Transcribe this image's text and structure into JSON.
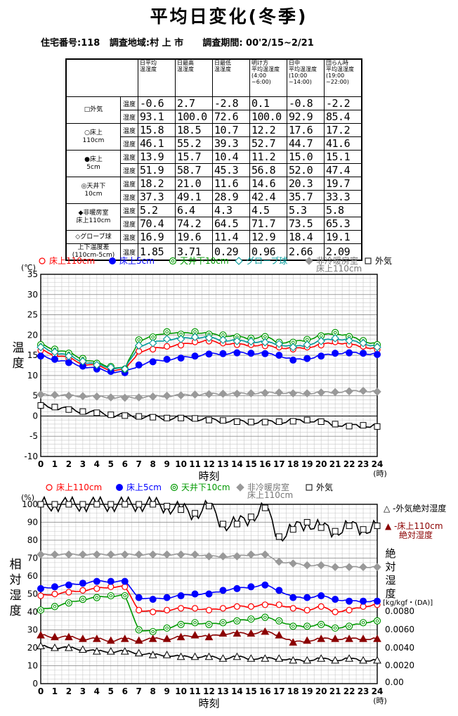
{
  "title": "平均日変化(冬季)",
  "subtitle": "住宅番号:118   調査地域:村 上 市      調査期間: 00'2/15~2/21",
  "table": {
    "headers": [
      "日平均\n温湿度",
      "日最高\n温湿度",
      "日最低\n温湿度",
      "明け方\n平均温湿度\n(4:00\n~6:00)",
      "日中\n平均温湿度\n(10:00\n~14:00)",
      "団らん時\n平均温湿度\n(19:00\n~22:00)"
    ],
    "rows": [
      {
        "label": "□外気",
        "temp": [
          "-0.6",
          "2.7",
          "-2.8",
          "0.1",
          "-0.8",
          "-2.2"
        ],
        "hum": [
          "93.1",
          "100.0",
          "72.6",
          "100.0",
          "92.9",
          "85.4"
        ]
      },
      {
        "label": "○床上\n110cm",
        "temp": [
          "15.8",
          "18.5",
          "10.7",
          "12.2",
          "17.6",
          "17.2"
        ],
        "hum": [
          "46.1",
          "55.2",
          "39.3",
          "52.7",
          "44.7",
          "41.6"
        ]
      },
      {
        "label": "●床上\n5cm",
        "temp": [
          "13.9",
          "15.7",
          "10.4",
          "11.2",
          "15.0",
          "15.1"
        ],
        "hum": [
          "51.9",
          "58.7",
          "45.3",
          "56.8",
          "52.0",
          "47.4"
        ]
      },
      {
        "label": "◎天井下\n10cm",
        "temp": [
          "18.2",
          "21.0",
          "11.6",
          "14.6",
          "20.3",
          "19.7"
        ],
        "hum": [
          "37.3",
          "49.1",
          "28.9",
          "42.4",
          "35.7",
          "33.3"
        ]
      },
      {
        "label": "◆非暖房室\n床上110cm",
        "temp": [
          "5.2",
          "6.4",
          "4.3",
          "4.5",
          "5.3",
          "5.8"
        ],
        "hum": [
          "70.4",
          "74.2",
          "64.5",
          "71.7",
          "73.5",
          "65.3"
        ]
      },
      {
        "label": "◇グローブ球",
        "temp": [
          "16.9",
          "19.6",
          "11.4",
          "12.9",
          "18.4",
          "19.1"
        ]
      },
      {
        "label": "上下温度差\n(110cm-5cm)",
        "temp": [
          "1.85",
          "3.71",
          "0.29",
          "0.96",
          "2.66",
          "2.09"
        ]
      }
    ],
    "kind_temp": "温度",
    "kind_hum": "湿度"
  },
  "chart_data": [
    {
      "type": "line",
      "xlabel": "時刻",
      "ylabel": "温度",
      "yunit": "(℃)",
      "xunit": "(時)",
      "ylim": [
        -10,
        35
      ],
      "xlim": [
        0,
        24
      ],
      "grid": true,
      "legend": [
        "○ 床上110cm",
        "● 床上5cm",
        "◎ 天井下10cm",
        "◇グローブ球",
        "◆ 非冷暖房室\n床上110cm",
        "□ 外気"
      ],
      "x": [
        0,
        1,
        2,
        3,
        4,
        5,
        6,
        7,
        8,
        9,
        10,
        11,
        12,
        13,
        14,
        15,
        16,
        17,
        18,
        19,
        20,
        21,
        22,
        23,
        24
      ],
      "series": [
        {
          "name": "床上110cm",
          "color": "#ff0000",
          "marker": "o-open",
          "values": [
            16.2,
            15.2,
            14.2,
            13.0,
            12.3,
            11.5,
            11.2,
            16.0,
            16.5,
            17.2,
            17.5,
            18.3,
            18.5,
            18.0,
            17.6,
            17.6,
            17.3,
            17.0,
            16.5,
            17.0,
            17.5,
            18.3,
            17.6,
            17.2,
            16.4
          ]
        },
        {
          "name": "床上5cm",
          "color": "#0000ff",
          "marker": "o-fill",
          "values": [
            14.8,
            14.0,
            13.2,
            12.3,
            11.6,
            11.0,
            10.7,
            12.6,
            13.4,
            14.0,
            14.3,
            14.8,
            15.3,
            15.4,
            15.6,
            15.5,
            15.4,
            15.0,
            13.8,
            14.2,
            14.8,
            15.5,
            15.6,
            15.5,
            15.2
          ]
        },
        {
          "name": "天井下10cm",
          "color": "#009900",
          "marker": "o-double",
          "values": [
            17.6,
            16.5,
            15.5,
            14.2,
            13.0,
            12.2,
            11.6,
            18.8,
            19.5,
            20.8,
            20.2,
            20.8,
            20.2,
            20.0,
            19.5,
            19.2,
            19.6,
            18.2,
            18.2,
            18.9,
            19.8,
            20.6,
            19.6,
            18.6,
            17.6
          ]
        },
        {
          "name": "グローブ球",
          "color": "#009999",
          "marker": "diamond-open",
          "values": [
            17.0,
            15.8,
            14.8,
            13.5,
            12.6,
            12.0,
            11.6,
            17.4,
            18.0,
            19.0,
            19.0,
            19.5,
            19.3,
            18.8,
            18.5,
            18.4,
            18.2,
            17.8,
            17.0,
            17.6,
            18.5,
            19.2,
            18.6,
            18.0,
            17.0
          ]
        },
        {
          "name": "非冷暖房室\n床上110cm",
          "color": "#999999",
          "marker": "diamond-fill",
          "values": [
            5.3,
            5.2,
            5.0,
            4.9,
            4.8,
            4.6,
            4.5,
            4.6,
            4.8,
            5.0,
            5.1,
            5.3,
            5.4,
            5.5,
            5.5,
            5.6,
            5.7,
            5.8,
            5.6,
            5.6,
            5.8,
            5.9,
            6.1,
            6.2,
            6.0
          ]
        },
        {
          "name": "外気",
          "color": "#000000",
          "marker": "square-open",
          "values": [
            2.6,
            2.2,
            1.6,
            1.1,
            0.8,
            0.3,
            0.1,
            -0.1,
            -0.3,
            -0.5,
            -0.5,
            -0.6,
            -1.0,
            -1.1,
            -1.4,
            -1.5,
            -1.5,
            -1.4,
            -1.3,
            -1.0,
            -1.4,
            -2.0,
            -2.5,
            -2.3,
            -2.6
          ]
        }
      ]
    },
    {
      "type": "line",
      "xlabel": "時刻",
      "ylabel": "相対湿度",
      "yunit": "(%)",
      "xunit": "(時)",
      "ylim": [
        0,
        100
      ],
      "xlim": [
        0,
        24
      ],
      "grid": true,
      "y2label": "絶対湿度",
      "y2unit": "[kg/kgf・(DA)]",
      "y2ticks": [
        "0.0080",
        "0.0060",
        "0.0040",
        "0.0020",
        "0.00"
      ],
      "legend": [
        "○ 床上110cm",
        "● 床上5cm",
        "◎ 天井下10cm",
        "◆ 非冷暖房室\n床上110cm",
        "□ 外気"
      ],
      "legend_right": [
        "△ -外気絶対湿度",
        "▲ -床上110cm\n絶対湿度"
      ],
      "x": [
        0,
        1,
        2,
        3,
        4,
        5,
        6,
        7,
        8,
        9,
        10,
        11,
        12,
        13,
        14,
        15,
        16,
        17,
        18,
        19,
        20,
        21,
        22,
        23,
        24
      ],
      "series": [
        {
          "name": "床上110cm",
          "color": "#ff0000",
          "marker": "o-open",
          "values": [
            49,
            50,
            51,
            52,
            53,
            54,
            54,
            41,
            40,
            41,
            42,
            42,
            41,
            42,
            43,
            43,
            44,
            44,
            42,
            41,
            43,
            40,
            41,
            43,
            44
          ]
        },
        {
          "name": "床上5cm",
          "color": "#0000ff",
          "marker": "o-fill",
          "values": [
            53,
            54,
            55,
            56,
            57,
            57,
            57,
            48,
            47,
            48,
            49,
            50,
            50,
            52,
            53,
            54,
            55,
            52,
            48,
            48,
            49,
            47,
            46,
            46,
            46
          ]
        },
        {
          "name": "天井下10cm",
          "color": "#009900",
          "marker": "o-double",
          "values": [
            41,
            43,
            45,
            47,
            48,
            49,
            49,
            30,
            29,
            31,
            33,
            34,
            33,
            34,
            35,
            36,
            37,
            35,
            32,
            32,
            33,
            31,
            32,
            34,
            35
          ]
        },
        {
          "name": "非冷暖房室\n床上110cm",
          "color": "#999999",
          "marker": "diamond-fill",
          "values": [
            72,
            72,
            72,
            72,
            72,
            72,
            72,
            72,
            72,
            72,
            72,
            72,
            71,
            71,
            71,
            72,
            72,
            68,
            67,
            66,
            66,
            65,
            65,
            65,
            65
          ]
        },
        {
          "name": "外気",
          "color": "#000000",
          "marker": "square-open",
          "values": [
            100,
            100,
            100,
            100,
            100,
            100,
            100,
            100,
            100,
            99,
            97,
            95,
            99,
            89,
            89,
            93,
            98,
            82,
            86,
            90,
            87,
            85,
            88,
            86,
            88
          ]
        },
        {
          "name": "外気絶対湿度",
          "color": "#000000",
          "marker": "triangle-open",
          "axis": "right",
          "values": [
            21,
            20,
            20,
            19,
            18,
            18,
            18,
            17,
            16,
            16,
            15,
            15,
            15,
            14,
            15,
            14,
            14,
            14,
            13,
            13,
            14,
            13,
            14,
            13,
            13
          ]
        },
        {
          "name": "床上110cm絶対湿度",
          "color": "#8b0000",
          "marker": "triangle-fill",
          "axis": "right",
          "values": [
            27,
            26,
            26,
            25,
            25,
            24,
            25,
            24,
            25,
            25,
            26,
            27,
            26,
            28,
            28,
            28,
            29,
            27,
            23,
            24,
            25,
            25,
            25,
            25,
            25
          ]
        }
      ]
    }
  ]
}
